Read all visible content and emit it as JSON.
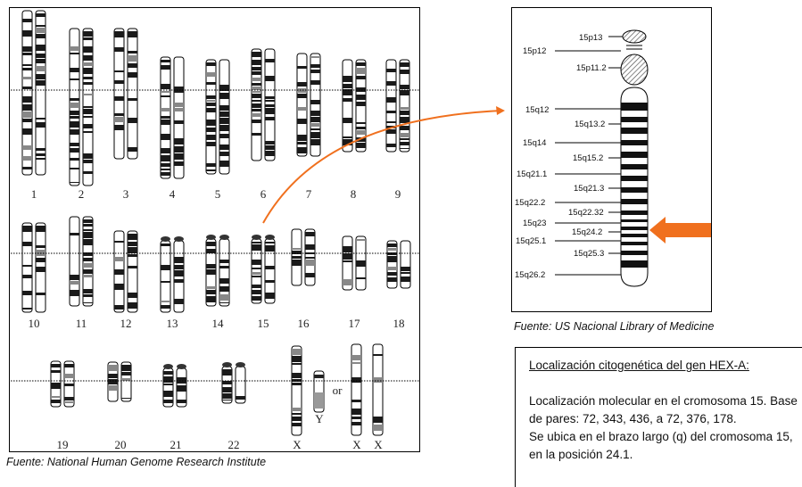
{
  "karyotype": {
    "caption": "Fuente: National Human Genome Research Institute",
    "labels_row1": [
      "1",
      "2",
      "3",
      "4",
      "5",
      "6",
      "7",
      "8",
      "9"
    ],
    "labels_row2": [
      "10",
      "11",
      "12",
      "13",
      "14",
      "15",
      "16",
      "17",
      "18"
    ],
    "labels_row3": [
      "19",
      "20",
      "21",
      "22",
      "X",
      "Y",
      "or",
      "X",
      "X"
    ]
  },
  "chromosome15": {
    "caption": "Fuente: US Nacional Library of Medicine",
    "left_labels": [
      "15p12",
      "15q12",
      "15q14",
      "15q21.1",
      "15q22.2",
      "15q23",
      "15q25.1",
      "15q26.2"
    ],
    "right_labels": [
      "15p13",
      "15p11.2",
      "15q13.2",
      "15q15.2",
      "15q21.3",
      "15q22.32",
      "15q24.2",
      "15q25.3"
    ]
  },
  "info": {
    "title": "Localización citogenética del gen HEX-A:",
    "line1": "Localización molecular en el cromosoma 15. Base de pares: 72, 343, 436, a 72, 376, 178.",
    "line2": "Se ubica en el brazo largo (q) del cromosoma 15, en la posición 24.1."
  },
  "colors": {
    "arrow": "#f0701e",
    "band": "#111111",
    "line": "#000000"
  }
}
